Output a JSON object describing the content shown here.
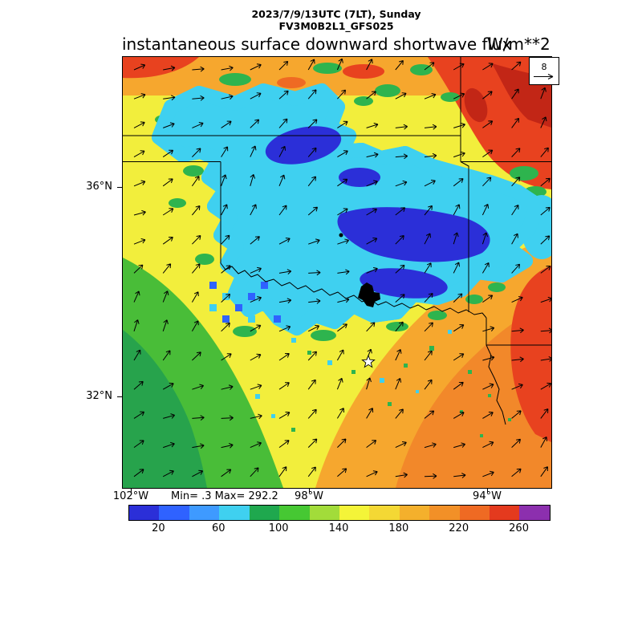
{
  "header": {
    "line1": "2023/7/9/13UTC (7LT), Sunday",
    "line2": "FV3M0B2L1_GFS025"
  },
  "title": "instantaneous surface downward shortwave flux",
  "units": "W/m**2",
  "stats": {
    "text": "Min= .3 Max= 292.2",
    "min": 0.3,
    "max": 292.2
  },
  "map": {
    "y_ticks": [
      {
        "label": "36°N"
      },
      {
        "label": "32°N"
      }
    ],
    "x_ticks": [
      {
        "label": "102°W"
      },
      {
        "label": "98°W"
      },
      {
        "label": "94°W"
      }
    ]
  },
  "wind_reference": {
    "value": "8"
  },
  "chart_data": {
    "type": "heatmap",
    "title": "instantaneous surface downward shortwave flux",
    "subtitle": [
      "2023/7/9/13UTC (7LT), Sunday",
      "FV3M0B2L1_GFS025"
    ],
    "units": "W/m**2",
    "value_min": 0.3,
    "value_max": 292.2,
    "x_ticks": [
      "102°W",
      "98°W",
      "94°W"
    ],
    "y_ticks": [
      "36°N",
      "32°N"
    ],
    "region": "Southern Plains (Oklahoma / north Texas), state borders overlaid",
    "overlay": "wind vector arrows, reference vector = 8",
    "features": [
      "large low-flux (blue, ~20-80 W/m**2) cloud-shadow mass over central/eastern Oklahoma",
      "high flux (orange-red, ~200-290 W/m**2) upper-right and along east edge",
      "green-to-yellow gradient (~100-160 W/m**2) across southwest corner",
      "orange (~180-220 W/m**2) across south-central and southeast"
    ],
    "colorbar": {
      "start": 0,
      "step": 20,
      "colors": [
        "#2b2fd8",
        "#2f62ff",
        "#3e9aff",
        "#3fd0f0",
        "#1fa84e",
        "#46c833",
        "#a2dc3a",
        "#f4f438",
        "#f4d834",
        "#f4b02c",
        "#f29027",
        "#ef6a23",
        "#e43a1e",
        "#8c2fae"
      ],
      "tick_values": [
        20,
        60,
        100,
        140,
        180,
        220,
        260
      ]
    },
    "wind_reference_value": 8
  }
}
